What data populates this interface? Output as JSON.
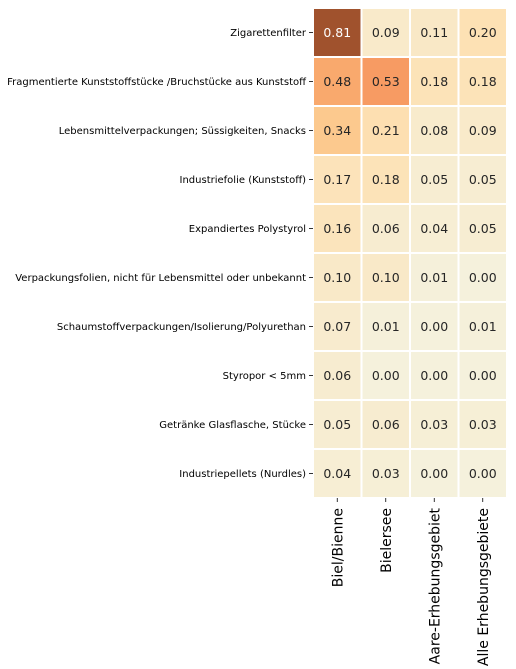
{
  "chart_data": {
    "type": "heatmap",
    "title": "",
    "xlabel": "",
    "ylabel": "",
    "rows": [
      "Zigarettenfilter",
      "Fragmentierte Kunststoffstücke /Bruchstücke aus Kunststoff",
      "Lebensmittelverpackungen; Süssigkeiten, Snacks",
      "Industriefolie (Kunststoff)",
      "Expandiertes Polystyrol",
      "Verpackungsfolien, nicht für Lebensmittel oder unbekannt",
      "Schaumstoffverpackungen/Isolierung/Polyurethan",
      "Styropor < 5mm",
      "Getränke Glasflasche, Stücke",
      "Industriepellets (Nurdles)"
    ],
    "columns": [
      "Biel/Bienne",
      "Bielersee",
      "Aare-Erhebungsgebiet",
      "Alle Erhebungsgebiete"
    ],
    "values": [
      [
        0.81,
        0.09,
        0.11,
        0.2
      ],
      [
        0.48,
        0.53,
        0.18,
        0.18
      ],
      [
        0.34,
        0.21,
        0.08,
        0.09
      ],
      [
        0.17,
        0.18,
        0.05,
        0.05
      ],
      [
        0.16,
        0.06,
        0.04,
        0.05
      ],
      [
        0.1,
        0.1,
        0.01,
        0.0
      ],
      [
        0.07,
        0.01,
        0.0,
        0.01
      ],
      [
        0.06,
        0.0,
        0.0,
        0.0
      ],
      [
        0.05,
        0.06,
        0.03,
        0.03
      ],
      [
        0.04,
        0.03,
        0.0,
        0.0
      ]
    ],
    "colormap": {
      "low": "#f5f1dc",
      "mid": "#fdd5a3",
      "high": "#a0522d"
    },
    "cell_border_color": "#ffffff",
    "legend": false
  }
}
